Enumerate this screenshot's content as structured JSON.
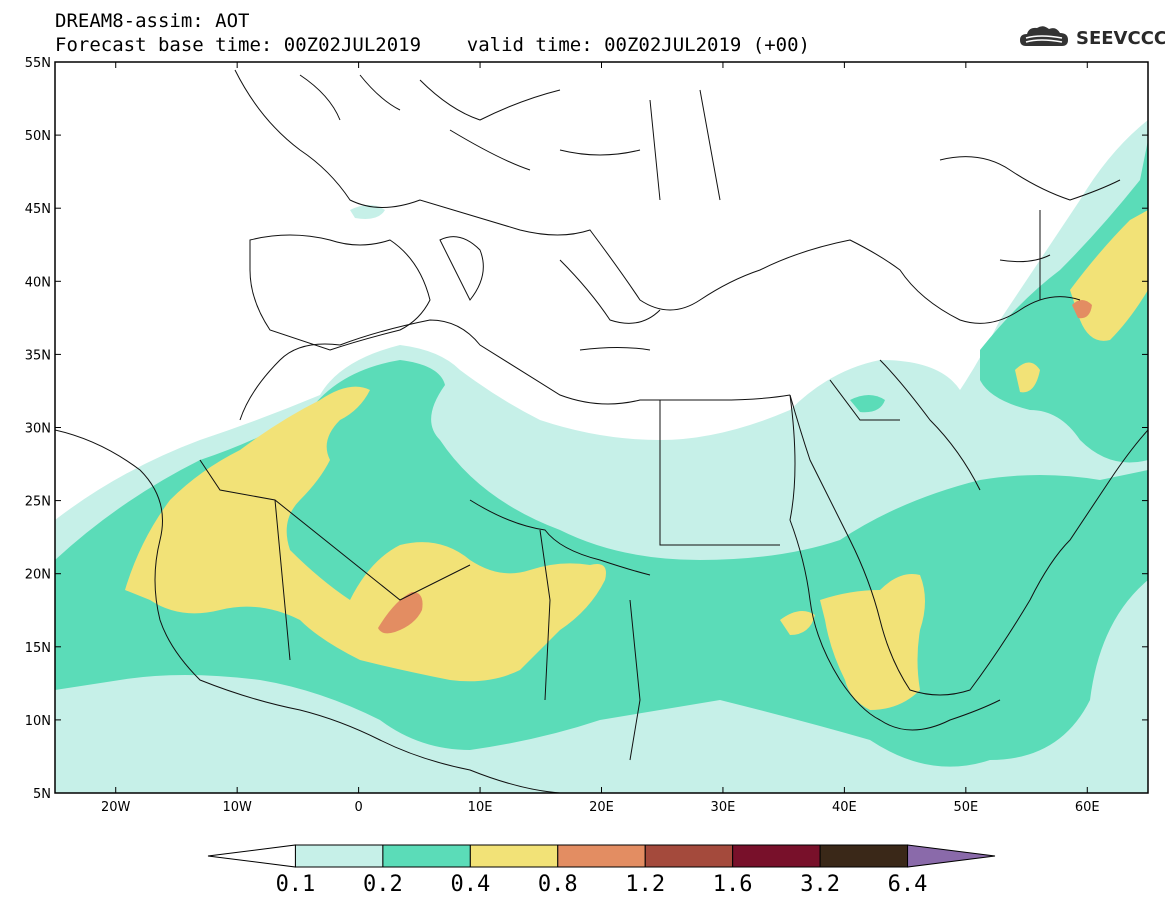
{
  "title": {
    "line1": "DREAM8-assim: AOT",
    "line2": "Forecast base time: 00Z02JUL2019    valid time: 00Z02JUL2019 (+00)"
  },
  "logo": {
    "text": "SEEVCCC",
    "icon": "cloud-icon"
  },
  "map": {
    "lat_labels": [
      "55N",
      "50N",
      "45N",
      "40N",
      "35N",
      "30N",
      "25N",
      "20N",
      "15N",
      "10N",
      "5N"
    ],
    "lon_labels": [
      "20W",
      "10W",
      "0",
      "10E",
      "20E",
      "30E",
      "40E",
      "50E",
      "60E"
    ],
    "lat_range": [
      5,
      55
    ],
    "lon_range": [
      -25,
      65
    ],
    "field": "AOT"
  },
  "colorbar": {
    "labels": [
      "0.1",
      "0.2",
      "0.4",
      "0.8",
      "1.2",
      "1.6",
      "3.2",
      "6.4"
    ],
    "colors": [
      "#ffffff",
      "#c6f0e8",
      "#5bdcb8",
      "#f2e277",
      "#e38d62",
      "#a44a3c",
      "#78102a",
      "#3a2818",
      "#8a6aaa"
    ]
  }
}
